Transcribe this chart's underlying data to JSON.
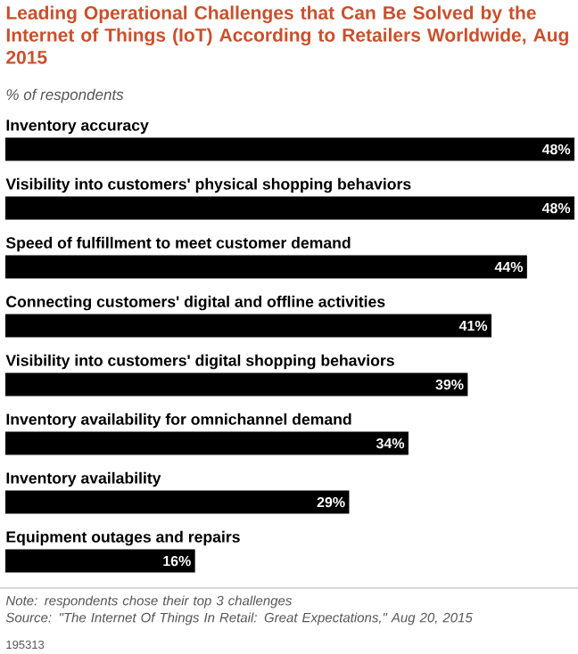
{
  "chart_data": {
    "type": "bar",
    "orientation": "horizontal",
    "title": "Leading Operational Challenges that Can Be Solved by the Internet of Things (IoT) According to Retailers Worldwide, Aug 2015",
    "subtitle": "% of respondents",
    "categories": [
      "Inventory accuracy",
      "Visibility into customers' physical shopping behaviors",
      "Speed of fulfillment to meet customer demand",
      "Connecting customers' digital and offline activities",
      "Visibility into customers' digital shopping behaviors",
      "Inventory availability for omnichannel demand",
      "Inventory availability",
      "Equipment outages and repairs"
    ],
    "values": [
      48,
      48,
      44,
      41,
      39,
      34,
      29,
      16
    ],
    "value_labels": [
      "48%",
      "48%",
      "44%",
      "41%",
      "39%",
      "34%",
      "29%",
      "16%"
    ],
    "color": "#000000",
    "annotations": [
      "Note: respondents chose their top 3 challenges",
      "Source: \"The Internet Of Things In Retail: Great Expectations,\" Aug 20, 2015",
      "195313"
    ]
  }
}
